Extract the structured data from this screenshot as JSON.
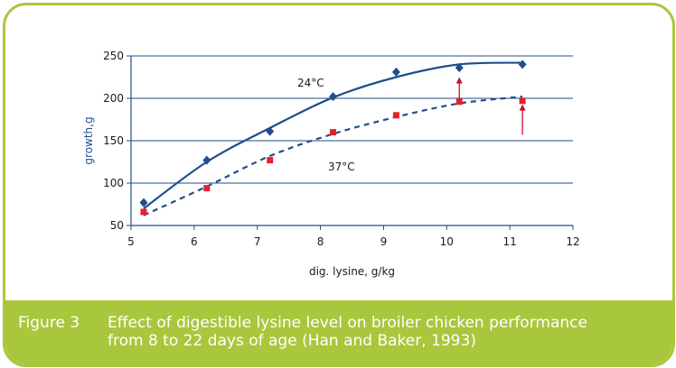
{
  "chart_data": {
    "type": "scatter",
    "xlabel": "dig. lysine, g/kg",
    "ylabel": "growth,g",
    "xlim": [
      5,
      12
    ],
    "ylim": [
      50,
      250
    ],
    "xticks": [
      "5",
      "6",
      "7",
      "8",
      "9",
      "10",
      "11",
      "12"
    ],
    "yticks": [
      "50",
      "100",
      "150",
      "200",
      "250"
    ],
    "grid": "horizontal",
    "series": [
      {
        "name": "24°C",
        "marker": "diamond",
        "color": "#1f4e8c",
        "line": "solid",
        "x": [
          5.2,
          6.2,
          7.2,
          8.2,
          9.2,
          10.2,
          11.2
        ],
        "y": [
          77,
          127,
          161,
          202,
          231,
          236,
          240
        ],
        "fit_y": [
          70,
          125,
          165,
          201,
          225,
          240,
          242
        ]
      },
      {
        "name": "37°C",
        "marker": "square",
        "color": "#e8202a",
        "line": "dashed",
        "x": [
          5.2,
          6.2,
          7.2,
          8.2,
          9.2,
          10.2,
          11.2
        ],
        "y": [
          66,
          94,
          127,
          160,
          180,
          196,
          197
        ],
        "fit_y": [
          62,
          96,
          132,
          158,
          178,
          194,
          202
        ]
      }
    ],
    "annotations": [
      {
        "type": "arrow",
        "x": 10.2,
        "from_y": 196,
        "to_y": 225
      },
      {
        "type": "arrow",
        "x": 11.2,
        "from_y": 157,
        "to_y": 193
      }
    ],
    "colors": {
      "axis": "#1f4e8c",
      "grid": "#1f4e8c",
      "arrow": "#c8102e"
    }
  },
  "caption": {
    "label": "Figure 3",
    "line1": "Effect of digestible lysine level on broiler chicken performance",
    "line2": "from 8 to 22 days of age (Han and Baker, 1993)",
    "background": "#a9c73c"
  }
}
